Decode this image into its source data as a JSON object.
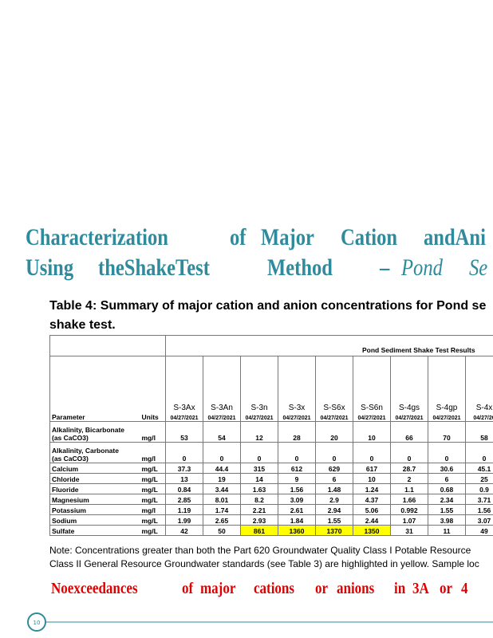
{
  "heading": {
    "line1": [
      "Characterization",
      "of",
      "Major",
      "Cation",
      "andAni"
    ],
    "line2": [
      "Using",
      "theShakeTest",
      "Method",
      "–",
      "Pond",
      "Se"
    ]
  },
  "table": {
    "caption": [
      "Table 4: Summary of major cation and anion concentrations for Pond se",
      "shake test."
    ],
    "group_header": "Pond Sediment Shake Test Results",
    "parameter_header": "Parameter",
    "units_header": "Units",
    "samples": [
      "S-3Ax",
      "S-3An",
      "S-3n",
      "S-3x",
      "S-S6x",
      "S-S6n",
      "S-4gs",
      "S-4gp",
      "S-4x"
    ],
    "dates": [
      "04/27/2021",
      "04/27/2021",
      "04/27/2021",
      "04/27/2021",
      "04/27/2021",
      "04/27/2021",
      "04/27/2021",
      "04/27/2021",
      "04/27/20"
    ],
    "highlight_color": "#ffff00",
    "rows": [
      {
        "parameter": [
          "Alkalinity, Bicarbonate",
          "(as CaCO3)"
        ],
        "units": "mg/l",
        "values": [
          53,
          54,
          12,
          28,
          20,
          10,
          66,
          70,
          58
        ]
      },
      {
        "parameter": [
          "Alkalinity, Carbonate",
          "(as CaCO3)"
        ],
        "units": "mg/l",
        "values": [
          0,
          0,
          0,
          0,
          0,
          0,
          0,
          0,
          0
        ]
      },
      {
        "parameter": [
          "Calcium"
        ],
        "units": "mg/L",
        "values": [
          37.3,
          44.4,
          315,
          612,
          629,
          617,
          28.7,
          30.6,
          45.1
        ]
      },
      {
        "parameter": [
          "Chloride"
        ],
        "units": "mg/L",
        "values": [
          13,
          19,
          14,
          9,
          6,
          10,
          2,
          6,
          25
        ]
      },
      {
        "parameter": [
          "Fluoride"
        ],
        "units": "mg/L",
        "values": [
          0.84,
          3.44,
          1.63,
          1.56,
          1.48,
          1.24,
          1.1,
          0.68,
          0.9
        ]
      },
      {
        "parameter": [
          "Magnesium"
        ],
        "units": "mg/L",
        "values": [
          2.85,
          8.01,
          8.2,
          3.09,
          2.9,
          4.37,
          1.66,
          2.34,
          3.71
        ]
      },
      {
        "parameter": [
          "Potassium"
        ],
        "units": "mg/l",
        "values": [
          1.19,
          1.74,
          2.21,
          2.61,
          2.94,
          5.06,
          0.992,
          1.55,
          1.56
        ]
      },
      {
        "parameter": [
          "Sodium"
        ],
        "units": "mg/L",
        "values": [
          1.99,
          2.65,
          2.93,
          1.84,
          1.55,
          2.44,
          1.07,
          3.98,
          3.07
        ]
      },
      {
        "parameter": [
          "Sulfate"
        ],
        "units": "mg/L",
        "values": [
          42,
          50,
          861,
          1360,
          1370,
          1350,
          31,
          11,
          49
        ],
        "highlighted": [
          2,
          3,
          4,
          5
        ]
      }
    ],
    "note": [
      "Note:  Concentrations greater than both the Part 620 Groundwater Quality Class I Potable Resource",
      "Class II General Resource Groundwater standards (see Table 3) are highlighted in yellow. Sample loc"
    ]
  },
  "finding": [
    "Noexceedances",
    "of",
    "major",
    "cations",
    "or",
    "anions",
    "in",
    "3A",
    "or",
    "4"
  ],
  "page_number": "10"
}
